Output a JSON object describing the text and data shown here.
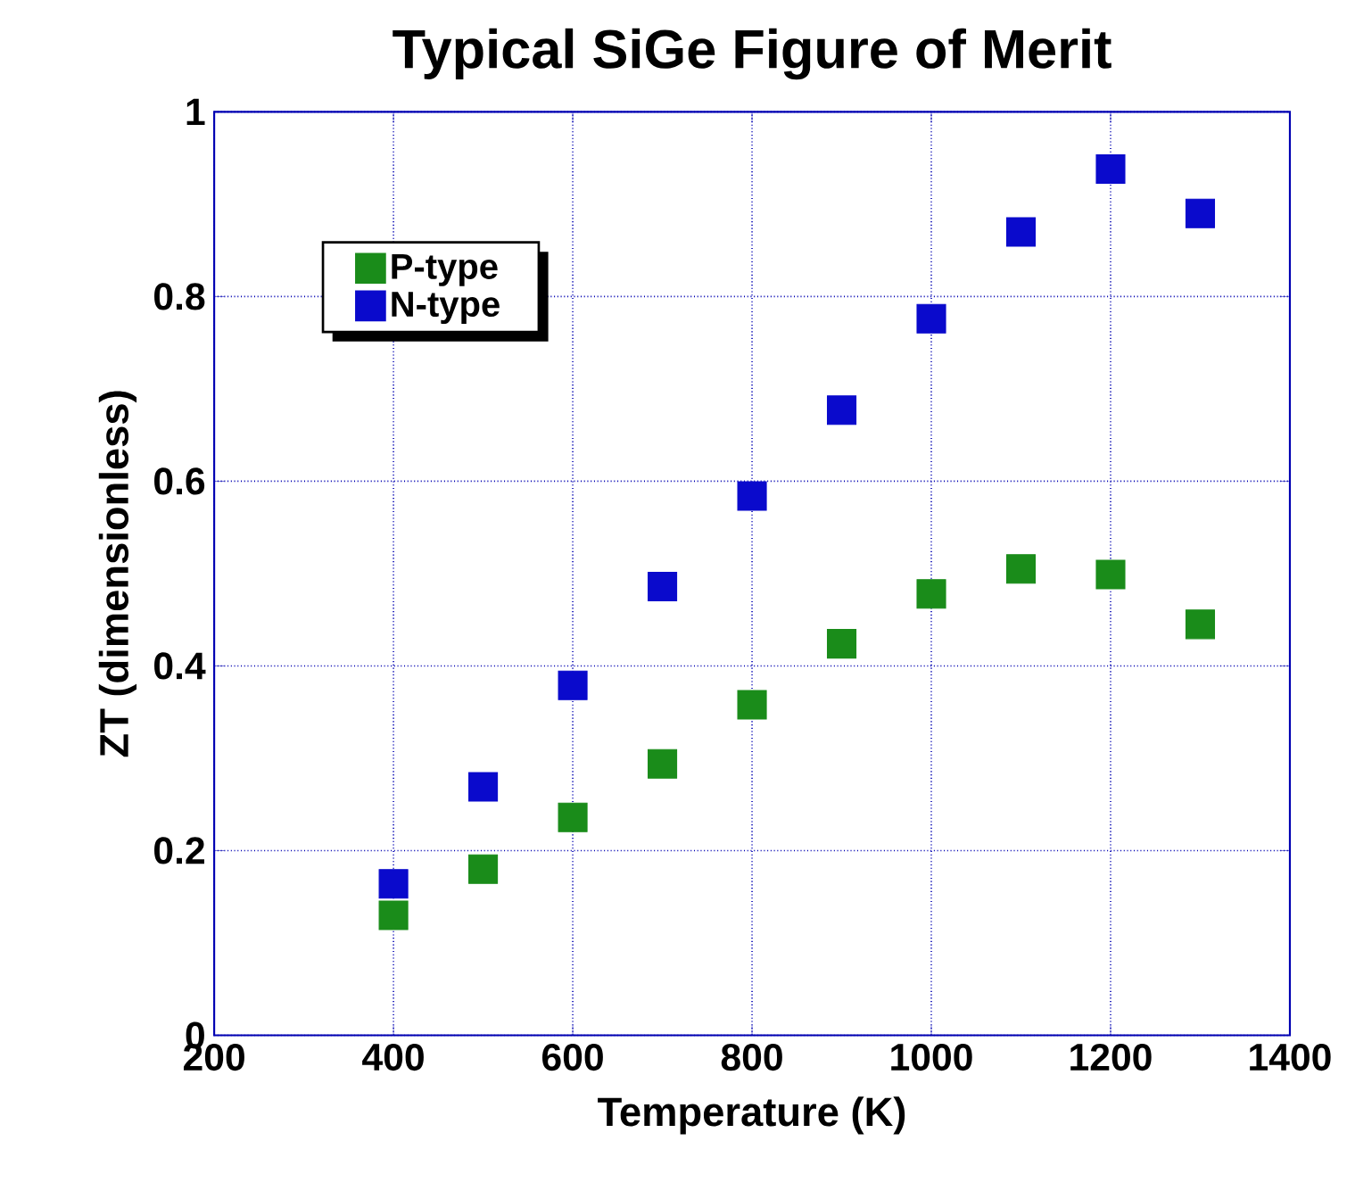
{
  "chart_data": {
    "type": "scatter",
    "title": "Typical SiGe Figure of Merit",
    "xlabel": "Temperature (K)",
    "ylabel": "ZT (dimensionless)",
    "x": [
      400,
      500,
      600,
      700,
      800,
      900,
      1000,
      1100,
      1200,
      1300
    ],
    "series": [
      {
        "name": "P-type",
        "color": "#1a8c1a",
        "values": [
          0.13,
          0.18,
          0.236,
          0.294,
          0.358,
          0.424,
          0.478,
          0.505,
          0.499,
          0.445
        ]
      },
      {
        "name": "N-type",
        "color": "#0a0acc",
        "values": [
          0.164,
          0.269,
          0.379,
          0.486,
          0.584,
          0.677,
          0.776,
          0.87,
          0.938,
          0.89
        ]
      }
    ],
    "xlim": [
      200,
      1400
    ],
    "ylim": [
      0,
      1
    ],
    "xticks": [
      200,
      400,
      600,
      800,
      1000,
      1200,
      1400
    ],
    "yticks": [
      0,
      0.2,
      0.4,
      0.6,
      0.8,
      1
    ],
    "grid": true,
    "legend": "top left",
    "marker": "square"
  }
}
